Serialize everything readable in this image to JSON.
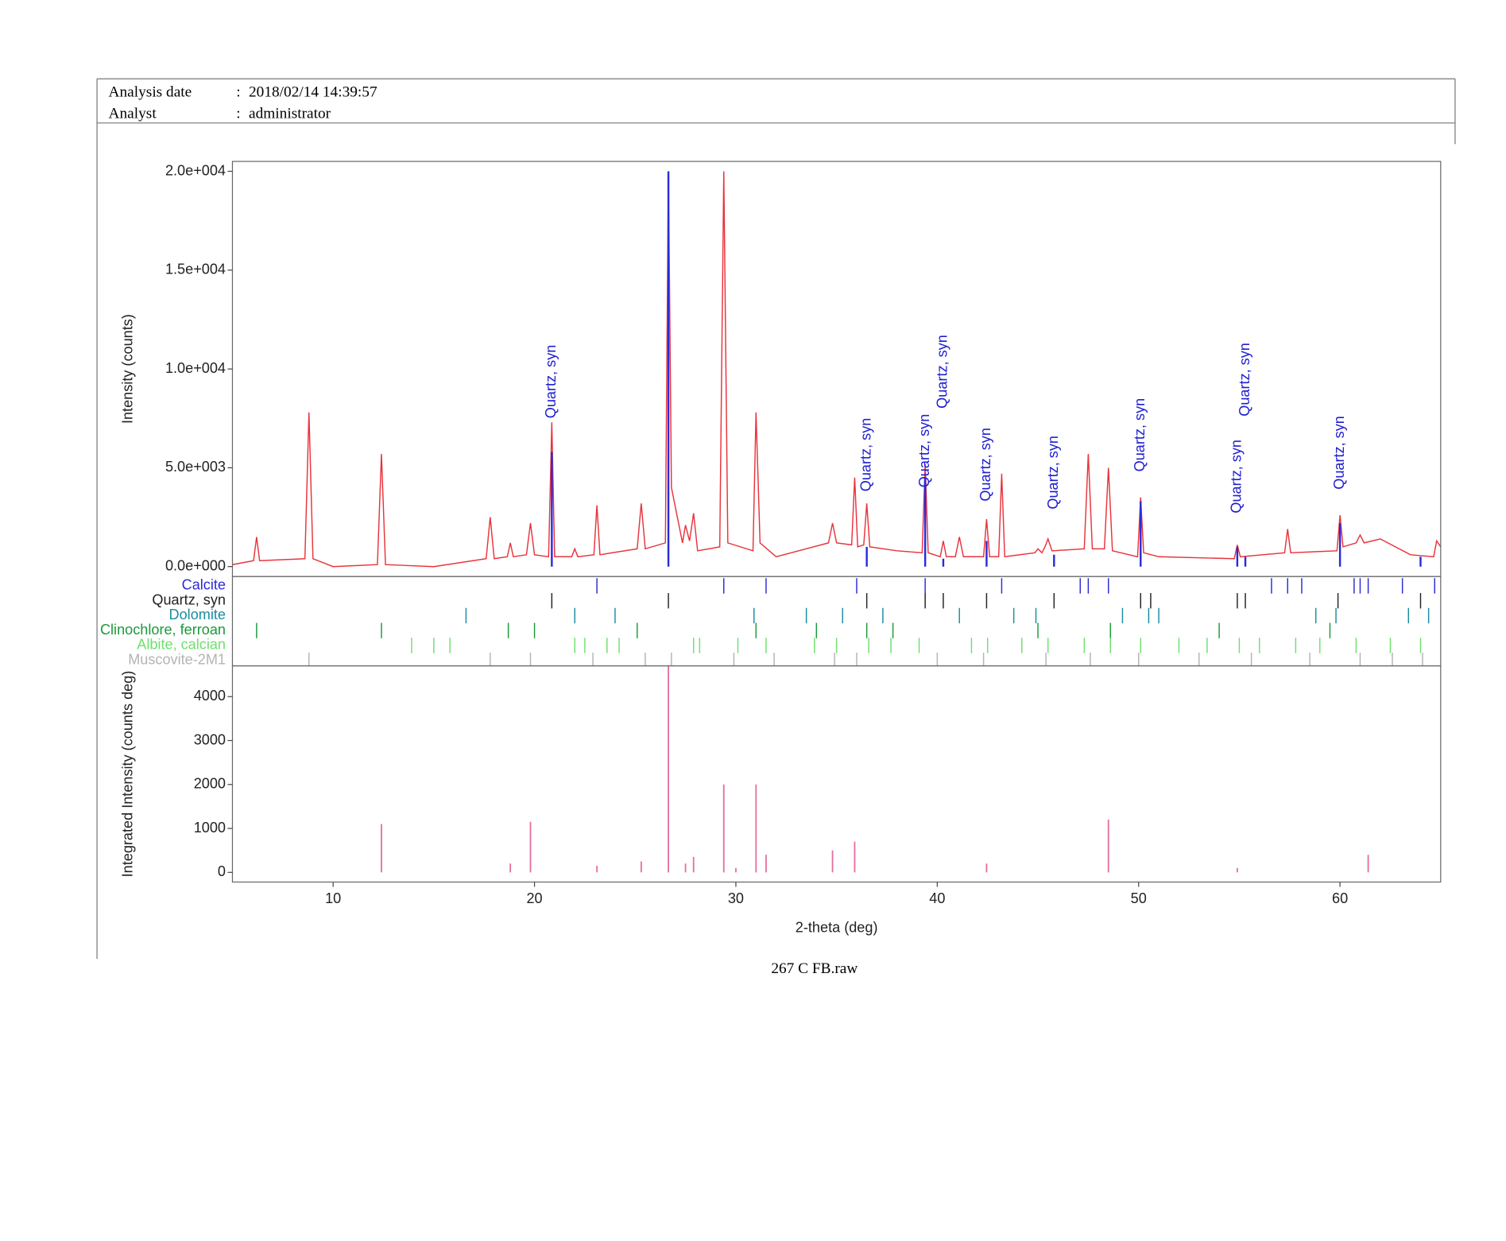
{
  "header": {
    "rows": [
      {
        "label": "Analysis date",
        "value": "2018/02/14 14:39:57"
      },
      {
        "label": "Analyst",
        "value": "administrator"
      }
    ]
  },
  "caption": "267 C FB.raw",
  "chart_data": [
    {
      "type": "line",
      "ylabel": "Intensity (counts)",
      "xlim": [
        5,
        65
      ],
      "ylim": [
        -500,
        20500
      ],
      "yticks": [
        {
          "value": 0,
          "label": "0.0e+000"
        },
        {
          "value": 5000,
          "label": "5.0e+003"
        },
        {
          "value": 10000,
          "label": "1.0e+004"
        },
        {
          "value": 15000,
          "label": "1.5e+004"
        },
        {
          "value": 20000,
          "label": "2.0e+004"
        }
      ],
      "series": [
        {
          "color": "#e8343c",
          "x": [
            5,
            6.05,
            6.2,
            6.35,
            8.6,
            8.8,
            9.0,
            10,
            12.2,
            12.4,
            12.6,
            15,
            17.6,
            17.8,
            18.0,
            18.65,
            18.8,
            18.95,
            19.6,
            19.8,
            20.0,
            20.7,
            20.86,
            21.0,
            21.85,
            22.0,
            22.15,
            22.95,
            23.1,
            23.25,
            25.1,
            25.3,
            25.5,
            26.5,
            26.65,
            26.8,
            27.35,
            27.5,
            27.7,
            27.9,
            28.1,
            29.2,
            29.4,
            29.6,
            30.85,
            31.0,
            31.2,
            32,
            34.6,
            34.8,
            35.0,
            35.75,
            35.9,
            36.05,
            36.35,
            36.5,
            36.65,
            38,
            39.25,
            39.4,
            39.55,
            40.15,
            40.3,
            40.45,
            40.9,
            41.1,
            41.3,
            42.3,
            42.45,
            42.6,
            43.05,
            43.2,
            43.35,
            44.85,
            45.0,
            45.2,
            45.35,
            45.5,
            45.7,
            47.3,
            47.5,
            47.7,
            48.3,
            48.5,
            48.7,
            49.95,
            50.1,
            50.25,
            51,
            54.75,
            54.9,
            55.05,
            57.25,
            57.4,
            57.55,
            59.85,
            60.0,
            60.15,
            60.8,
            61.0,
            61.2,
            62,
            63.5,
            64.65,
            64.8,
            65
          ],
          "values": [
            100,
            300,
            1500,
            300,
            400,
            7800,
            400,
            0,
            100,
            5700,
            100,
            0,
            400,
            2500,
            400,
            500,
            1200,
            500,
            600,
            2200,
            600,
            500,
            7300,
            500,
            500,
            900,
            500,
            600,
            3100,
            600,
            900,
            3200,
            900,
            1200,
            20000,
            4000,
            1200,
            2100,
            1300,
            2700,
            800,
            1000,
            20000,
            1200,
            800,
            7800,
            1200,
            500,
            1200,
            2200,
            1200,
            1100,
            4500,
            1000,
            1100,
            3200,
            1000,
            800,
            700,
            5200,
            700,
            500,
            1300,
            500,
            500,
            1500,
            500,
            500,
            2400,
            500,
            500,
            4700,
            500,
            700,
            900,
            700,
            1000,
            1400,
            800,
            900,
            5700,
            900,
            900,
            5000,
            800,
            500,
            3500,
            700,
            500,
            400,
            1100,
            500,
            700,
            1900,
            700,
            800,
            2600,
            1000,
            1200,
            1600,
            1200,
            1400,
            600,
            500,
            1300,
            1000
          ]
        }
      ],
      "reference_lines": {
        "color": "#2a2ad8",
        "x": [
          20.86,
          26.65,
          36.5,
          39.4,
          40.3,
          42.45,
          45.8,
          50.1,
          54.9,
          55.3,
          60.0,
          64.0
        ],
        "values": [
          5800,
          20000,
          1000,
          4500,
          400,
          1300,
          600,
          3300,
          1000,
          500,
          2200,
          500
        ]
      },
      "annotations": [
        {
          "text": "Quartz, syn",
          "x": 20.86,
          "y": 7500
        },
        {
          "text": "Quartz, syn",
          "x": 36.5,
          "y": 3800
        },
        {
          "text": "Quartz, syn",
          "x": 39.4,
          "y": 4000
        },
        {
          "text": "Quartz, syn",
          "x": 40.3,
          "y": 8000
        },
        {
          "text": "Quartz, syn",
          "x": 42.45,
          "y": 3300
        },
        {
          "text": "Quartz, syn",
          "x": 45.8,
          "y": 2900
        },
        {
          "text": "Quartz, syn",
          "x": 50.1,
          "y": 4800
        },
        {
          "text": "Quartz, syn",
          "x": 54.9,
          "y": 2700
        },
        {
          "text": "Quartz, syn",
          "x": 55.3,
          "y": 7600
        },
        {
          "text": "Quartz, syn",
          "x": 60.0,
          "y": 3900
        }
      ]
    },
    {
      "type": "stick",
      "xlim": [
        5,
        65
      ],
      "series": [
        {
          "name": "Calcite",
          "color": "#2a2ad8",
          "x": [
            23.1,
            29.4,
            31.5,
            36.0,
            39.4,
            43.2,
            47.1,
            47.5,
            48.5,
            56.6,
            57.4,
            58.1,
            60.7,
            61.0,
            61.4,
            63.1,
            64.7
          ]
        },
        {
          "name": "Quartz, syn",
          "color": "#222222",
          "x": [
            20.86,
            26.65,
            36.5,
            39.4,
            40.3,
            42.45,
            45.8,
            50.1,
            50.6,
            54.9,
            55.3,
            59.9,
            64.0
          ]
        },
        {
          "name": "Dolomite",
          "color": "#1a8ca0",
          "x": [
            16.6,
            22.0,
            24.0,
            30.9,
            33.5,
            35.3,
            37.3,
            41.1,
            43.8,
            44.9,
            49.2,
            50.5,
            51.0,
            58.8,
            59.8,
            63.4,
            64.4
          ]
        },
        {
          "name": "Clinochlore, ferroan",
          "color": "#1a9a3a",
          "x": [
            6.2,
            12.4,
            18.7,
            20.0,
            25.1,
            31.0,
            34.0,
            36.5,
            37.8,
            45.0,
            48.6,
            54.0,
            59.5
          ]
        },
        {
          "name": "Albite, calcian",
          "color": "#6ee06e",
          "x": [
            13.9,
            15.0,
            15.8,
            22.0,
            22.5,
            23.6,
            24.2,
            27.9,
            28.2,
            30.1,
            31.5,
            33.9,
            35.0,
            36.6,
            37.7,
            39.1,
            41.7,
            42.5,
            44.2,
            45.5,
            47.3,
            48.6,
            50.1,
            52.0,
            53.4,
            55.0,
            56.0,
            57.8,
            59.0,
            60.8,
            62.5,
            64.0
          ]
        },
        {
          "name": "Muscovite-2M1",
          "color": "#b4b4b4",
          "x": [
            8.8,
            17.8,
            19.8,
            22.9,
            25.5,
            26.8,
            29.9,
            31.9,
            34.9,
            36.0,
            40.0,
            42.3,
            45.4,
            47.6,
            50.0,
            53.0,
            55.6,
            58.5,
            61.0,
            62.6,
            64.1
          ]
        }
      ]
    },
    {
      "type": "bar",
      "xlabel": "2-theta (deg)",
      "ylabel": "Integrated Intensity (counts deg)",
      "xlim": [
        5,
        65
      ],
      "ylim": [
        -220,
        4700
      ],
      "xticks": [
        10,
        20,
        30,
        40,
        50,
        60
      ],
      "yticks": [
        0,
        1000,
        2000,
        3000,
        4000
      ],
      "color": "#e46ea0",
      "x": [
        12.4,
        18.8,
        19.8,
        23.1,
        25.3,
        26.65,
        27.5,
        27.9,
        29.4,
        30.0,
        31.0,
        31.5,
        34.8,
        35.9,
        42.45,
        48.5,
        54.9,
        61.4
      ],
      "values": [
        1100,
        200,
        1150,
        150,
        250,
        5000,
        200,
        350,
        2000,
        100,
        2000,
        400,
        500,
        700,
        200,
        1200,
        100,
        400
      ]
    }
  ]
}
